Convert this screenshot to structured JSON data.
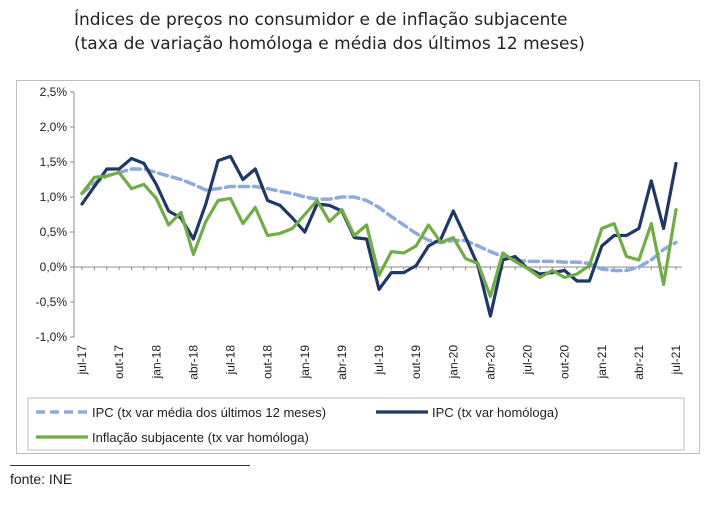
{
  "title_line1": "Índices de preços no consumidor e de inflação subjacente",
  "title_line2": "(taxa de variação homóloga e média dos últimos 12 meses)",
  "source": "fonte: INE",
  "chart_data": {
    "type": "line",
    "xlabel": "",
    "ylabel": "",
    "ylim": [
      -1.0,
      2.5
    ],
    "yticks": [
      -1.0,
      -0.5,
      0.0,
      0.5,
      1.0,
      1.5,
      2.0,
      2.5
    ],
    "ytick_labels": [
      "-1,0%",
      "-0,5%",
      "0,0%",
      "0,5%",
      "1,0%",
      "1,5%",
      "2,0%",
      "2,5%"
    ],
    "x": [
      "jul-17",
      "ago-17",
      "set-17",
      "out-17",
      "nov-17",
      "dez-17",
      "jan-18",
      "fev-18",
      "mar-18",
      "abr-18",
      "mai-18",
      "jun-18",
      "jul-18",
      "ago-18",
      "set-18",
      "out-18",
      "nov-18",
      "dez-18",
      "jan-19",
      "fev-19",
      "mar-19",
      "abr-19",
      "mai-19",
      "jun-19",
      "jul-19",
      "ago-19",
      "set-19",
      "out-19",
      "nov-19",
      "dez-19",
      "jan-20",
      "fev-20",
      "mar-20",
      "abr-20",
      "mai-20",
      "jun-20",
      "jul-20",
      "ago-20",
      "set-20",
      "out-20",
      "nov-20",
      "dez-20",
      "jan-21",
      "fev-21",
      "mar-21",
      "abr-21",
      "mai-21",
      "jun-21",
      "jul-21"
    ],
    "xtick_labels": [
      "jul-17",
      "out-17",
      "jan-18",
      "abr-18",
      "jul-18",
      "out-18",
      "jan-19",
      "abr-19",
      "jul-19",
      "out-19",
      "jan-20",
      "abr-20",
      "jul-20",
      "out-20",
      "jan-21",
      "abr-21",
      "jul-21"
    ],
    "grid": false,
    "legend_position": "bottom",
    "series": [
      {
        "name": "IPC (tx var média dos últimos 12 meses)",
        "color": "#8faadc",
        "dash": true,
        "values": [
          1.05,
          1.2,
          1.3,
          1.35,
          1.4,
          1.4,
          1.35,
          1.3,
          1.25,
          1.18,
          1.1,
          1.12,
          1.15,
          1.15,
          1.15,
          1.12,
          1.08,
          1.05,
          1.0,
          0.97,
          0.97,
          1.0,
          1.0,
          0.95,
          0.85,
          0.72,
          0.6,
          0.48,
          0.38,
          0.35,
          0.38,
          0.38,
          0.3,
          0.22,
          0.15,
          0.1,
          0.08,
          0.08,
          0.08,
          0.07,
          0.07,
          0.05,
          -0.03,
          -0.05,
          -0.05,
          0.0,
          0.1,
          0.25,
          0.35
        ]
      },
      {
        "name": "IPC (tx var homóloga)",
        "color": "#1f3864",
        "dash": false,
        "values": [
          0.9,
          1.15,
          1.4,
          1.4,
          1.55,
          1.48,
          1.18,
          0.8,
          0.7,
          0.4,
          0.9,
          1.52,
          1.58,
          1.25,
          1.4,
          0.95,
          0.88,
          0.7,
          0.5,
          0.9,
          0.88,
          0.8,
          0.42,
          0.4,
          -0.32,
          -0.08,
          -0.08,
          0.02,
          0.3,
          0.4,
          0.8,
          0.42,
          0.02,
          -0.7,
          0.1,
          0.15,
          -0.02,
          -0.1,
          -0.08,
          -0.05,
          -0.2,
          -0.2,
          0.3,
          0.45,
          0.45,
          0.55,
          1.23,
          0.55,
          1.48
        ]
      },
      {
        "name": "Inflação subjacente (tx var homóloga)",
        "color": "#70ad47",
        "dash": false,
        "values": [
          1.05,
          1.28,
          1.3,
          1.35,
          1.12,
          1.18,
          0.98,
          0.6,
          0.78,
          0.18,
          0.65,
          0.95,
          0.98,
          0.62,
          0.85,
          0.45,
          0.48,
          0.55,
          0.75,
          0.95,
          0.65,
          0.82,
          0.45,
          0.6,
          -0.12,
          0.22,
          0.2,
          0.3,
          0.6,
          0.35,
          0.42,
          0.12,
          0.05,
          -0.42,
          0.2,
          0.08,
          -0.02,
          -0.15,
          -0.05,
          -0.15,
          -0.1,
          0.02,
          0.55,
          0.62,
          0.15,
          0.1,
          0.62,
          -0.25,
          0.82
        ]
      }
    ]
  }
}
